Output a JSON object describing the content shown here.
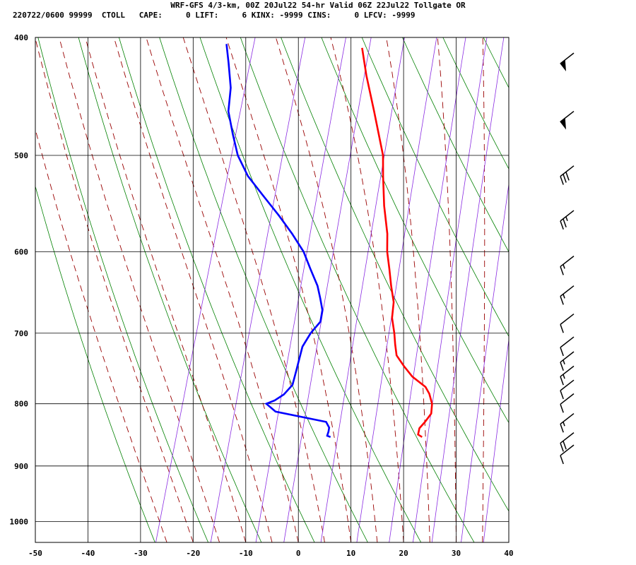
{
  "header": {
    "title": "WRF-GFS 4/3-km, 00Z 20Jul22 54-hr Valid 06Z 22Jul22 Tollgate OR",
    "stats": "220722/0600 99999  CTOLL   CAPE:     0 LIFT:     6 KINX: -9999 CINS:     0 LFCV: -9999"
  },
  "colors": {
    "temperature": "#ff0000",
    "dewpoint": "#0000ff",
    "isotherm": "#000000",
    "dry_adiabat": "#008000",
    "moist_adiabat": "#990000",
    "mixing_ratio": "#8a2be2",
    "wind_barb": "#000000"
  },
  "chart_data": {
    "type": "skew-t",
    "xlabel": "",
    "ylabel": "",
    "xlim": [
      -50,
      40
    ],
    "ylim": [
      1040,
      400
    ],
    "x_ticks": [
      "-50",
      "-40",
      "-30",
      "-20",
      "-10",
      "0",
      "10",
      "20",
      "30",
      "40"
    ],
    "y_ticks": [
      "400",
      "500",
      "600",
      "700",
      "800",
      "900",
      "1000"
    ],
    "grid": true,
    "series": [
      {
        "key": "temperature",
        "points": [
          [
            852,
            17.5
          ],
          [
            848,
            16.6
          ],
          [
            838,
            16.5
          ],
          [
            828,
            17.2
          ],
          [
            815,
            17.9
          ],
          [
            800,
            17.5
          ],
          [
            785,
            16.4
          ],
          [
            775,
            15.3
          ],
          [
            760,
            12.2
          ],
          [
            745,
            10.0
          ],
          [
            730,
            8.0
          ],
          [
            715,
            7.1
          ],
          [
            700,
            6.3
          ],
          [
            680,
            5.0
          ],
          [
            660,
            4.4
          ],
          [
            640,
            3.0
          ],
          [
            620,
            1.7
          ],
          [
            600,
            0.3
          ],
          [
            580,
            -0.7
          ],
          [
            550,
            -2.9
          ],
          [
            520,
            -4.8
          ],
          [
            500,
            -6.0
          ],
          [
            460,
            -10.2
          ],
          [
            430,
            -13.7
          ],
          [
            408,
            -16.1
          ]
        ]
      },
      {
        "key": "dewpoint",
        "points": [
          [
            852,
            0.1
          ],
          [
            850,
            -0.6
          ],
          [
            843,
            -0.6
          ],
          [
            837,
            -0.7
          ],
          [
            828,
            -1.6
          ],
          [
            812,
            -11.8
          ],
          [
            800,
            -14.0
          ],
          [
            795,
            -12.6
          ],
          [
            786,
            -11.2
          ],
          [
            772,
            -10.1
          ],
          [
            752,
            -10.2
          ],
          [
            735,
            -10.3
          ],
          [
            718,
            -10.4
          ],
          [
            700,
            -9.6
          ],
          [
            685,
            -8.4
          ],
          [
            670,
            -8.7
          ],
          [
            655,
            -9.8
          ],
          [
            640,
            -11.0
          ],
          [
            620,
            -13.3
          ],
          [
            600,
            -15.6
          ],
          [
            580,
            -18.8
          ],
          [
            560,
            -22.4
          ],
          [
            540,
            -26.4
          ],
          [
            520,
            -30.5
          ],
          [
            500,
            -33.6
          ],
          [
            480,
            -35.8
          ],
          [
            460,
            -37.9
          ],
          [
            440,
            -38.8
          ],
          [
            420,
            -40.6
          ],
          [
            405,
            -42.1
          ]
        ]
      }
    ],
    "wind_barbs": [
      {
        "p": 412,
        "knots": 50
      },
      {
        "p": 460,
        "knots": 50
      },
      {
        "p": 510,
        "knots": 30
      },
      {
        "p": 555,
        "knots": 25
      },
      {
        "p": 605,
        "knots": 15
      },
      {
        "p": 640,
        "knots": 15
      },
      {
        "p": 675,
        "knots": 10
      },
      {
        "p": 705,
        "knots": 10
      },
      {
        "p": 725,
        "knots": 15
      },
      {
        "p": 745,
        "knots": 15
      },
      {
        "p": 765,
        "knots": 10
      },
      {
        "p": 785,
        "knots": 10
      },
      {
        "p": 815,
        "knots": 15
      },
      {
        "p": 845,
        "knots": 20
      },
      {
        "p": 865,
        "knots": 10
      }
    ]
  }
}
